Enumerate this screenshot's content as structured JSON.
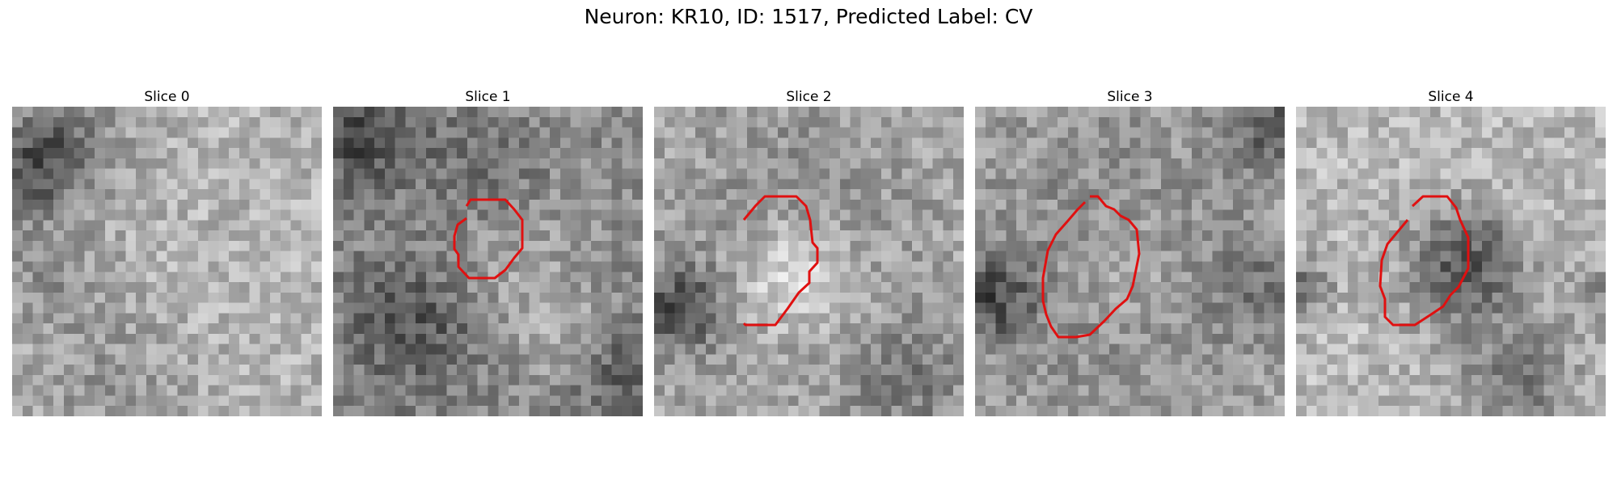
{
  "figure": {
    "title": "Neuron: KR10, ID: 1517, Predicted Label: CV"
  },
  "contour_color": "#e01010",
  "panels": [
    {
      "title": "Slice 0",
      "has_contour": false
    },
    {
      "title": "Slice 1",
      "has_contour": true
    },
    {
      "title": "Slice 2",
      "has_contour": true
    },
    {
      "title": "Slice 3",
      "has_contour": true
    },
    {
      "title": "Slice 4",
      "has_contour": true
    }
  ]
}
